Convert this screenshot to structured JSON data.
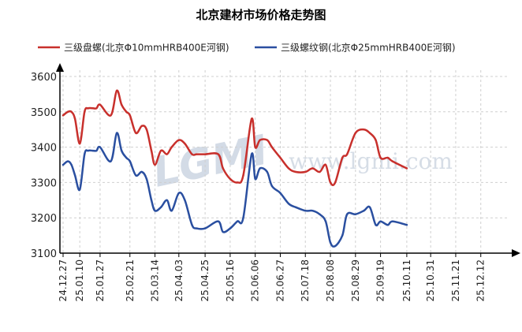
{
  "chart_data": {
    "type": "line",
    "title": "北京建材市场价格走势图",
    "xlabel": "",
    "ylabel": "",
    "ylim": [
      3100,
      3600
    ],
    "yticks": [
      3100,
      3200,
      3300,
      3400,
      3500,
      3600
    ],
    "xlim": [
      "24.12.27",
      "26.01.01"
    ],
    "xticks": [
      "24.12.27",
      "25.01.10",
      "25.01.27",
      "25.02.21",
      "25.03.14",
      "25.04.03",
      "25.04.25",
      "25.05.16",
      "25.06.06",
      "25.06.27",
      "25.07.18",
      "25.08.08",
      "25.08.29",
      "25.09.19",
      "25.10.11",
      "25.10.31",
      "25.11.21",
      "25.12.12"
    ],
    "grid": true,
    "legend_position": "top",
    "watermark": {
      "logo": "LGMI",
      "url": "www.lgmi.com"
    },
    "series": [
      {
        "name": "三级盘螺(北京Φ10mmHRB400E河钢)",
        "color": "#c8302c",
        "points": [
          [
            "24.12.27",
            3490
          ],
          [
            "24.12.31",
            3500
          ],
          [
            "25.01.03",
            3500
          ],
          [
            "25.01.06",
            3480
          ],
          [
            "25.01.10",
            3410
          ],
          [
            "25.01.14",
            3500
          ],
          [
            "25.01.17",
            3510
          ],
          [
            "25.01.21",
            3510
          ],
          [
            "25.01.24",
            3510
          ],
          [
            "25.01.27",
            3520
          ],
          [
            "25.02.05",
            3490
          ],
          [
            "25.02.10",
            3560
          ],
          [
            "25.02.14",
            3520
          ],
          [
            "25.02.18",
            3500
          ],
          [
            "25.02.21",
            3490
          ],
          [
            "25.02.26",
            3440
          ],
          [
            "25.03.03",
            3460
          ],
          [
            "25.03.07",
            3450
          ],
          [
            "25.03.11",
            3390
          ],
          [
            "25.03.14",
            3350
          ],
          [
            "25.03.19",
            3390
          ],
          [
            "25.03.24",
            3380
          ],
          [
            "25.03.28",
            3400
          ],
          [
            "25.04.03",
            3420
          ],
          [
            "25.04.08",
            3410
          ],
          [
            "25.04.14",
            3380
          ],
          [
            "25.04.18",
            3380
          ],
          [
            "25.04.25",
            3380
          ],
          [
            "25.05.06",
            3380
          ],
          [
            "25.05.10",
            3340
          ],
          [
            "25.05.16",
            3310
          ],
          [
            "25.05.22",
            3300
          ],
          [
            "25.05.27",
            3320
          ],
          [
            "25.06.03",
            3480
          ],
          [
            "25.06.06",
            3400
          ],
          [
            "25.06.10",
            3420
          ],
          [
            "25.06.16",
            3420
          ],
          [
            "25.06.20",
            3400
          ],
          [
            "25.06.27",
            3370
          ],
          [
            "25.07.04",
            3340
          ],
          [
            "25.07.10",
            3330
          ],
          [
            "25.07.18",
            3330
          ],
          [
            "25.07.24",
            3340
          ],
          [
            "25.07.30",
            3330
          ],
          [
            "25.08.04",
            3350
          ],
          [
            "25.08.08",
            3300
          ],
          [
            "25.08.12",
            3300
          ],
          [
            "25.08.18",
            3370
          ],
          [
            "25.08.22",
            3380
          ],
          [
            "25.08.29",
            3440
          ],
          [
            "25.09.05",
            3450
          ],
          [
            "25.09.10",
            3440
          ],
          [
            "25.09.15",
            3420
          ],
          [
            "25.09.19",
            3370
          ],
          [
            "25.09.25",
            3370
          ],
          [
            "25.09.29",
            3360
          ],
          [
            "25.10.11",
            3340
          ]
        ]
      },
      {
        "name": "三级螺纹钢(北京Φ25mmHRB400E河钢)",
        "color": "#2a4fa0",
        "points": [
          [
            "24.12.27",
            3350
          ],
          [
            "24.12.31",
            3360
          ],
          [
            "25.01.03",
            3350
          ],
          [
            "25.01.06",
            3320
          ],
          [
            "25.01.10",
            3280
          ],
          [
            "25.01.14",
            3380
          ],
          [
            "25.01.17",
            3390
          ],
          [
            "25.01.21",
            3390
          ],
          [
            "25.01.24",
            3390
          ],
          [
            "25.01.27",
            3400
          ],
          [
            "25.02.05",
            3360
          ],
          [
            "25.02.10",
            3440
          ],
          [
            "25.02.14",
            3390
          ],
          [
            "25.02.18",
            3370
          ],
          [
            "25.02.21",
            3360
          ],
          [
            "25.02.26",
            3320
          ],
          [
            "25.03.03",
            3330
          ],
          [
            "25.03.07",
            3310
          ],
          [
            "25.03.11",
            3250
          ],
          [
            "25.03.14",
            3220
          ],
          [
            "25.03.19",
            3230
          ],
          [
            "25.03.24",
            3250
          ],
          [
            "25.03.28",
            3220
          ],
          [
            "25.04.03",
            3270
          ],
          [
            "25.04.08",
            3250
          ],
          [
            "25.04.14",
            3180
          ],
          [
            "25.04.18",
            3170
          ],
          [
            "25.04.25",
            3170
          ],
          [
            "25.05.06",
            3190
          ],
          [
            "25.05.10",
            3160
          ],
          [
            "25.05.16",
            3170
          ],
          [
            "25.05.22",
            3190
          ],
          [
            "25.05.27",
            3200
          ],
          [
            "25.06.03",
            3380
          ],
          [
            "25.06.06",
            3310
          ],
          [
            "25.06.10",
            3340
          ],
          [
            "25.06.16",
            3330
          ],
          [
            "25.06.20",
            3290
          ],
          [
            "25.06.27",
            3270
          ],
          [
            "25.07.04",
            3240
          ],
          [
            "25.07.10",
            3230
          ],
          [
            "25.07.18",
            3220
          ],
          [
            "25.07.24",
            3220
          ],
          [
            "25.07.30",
            3210
          ],
          [
            "25.08.04",
            3190
          ],
          [
            "25.08.08",
            3130
          ],
          [
            "25.08.12",
            3120
          ],
          [
            "25.08.18",
            3150
          ],
          [
            "25.08.22",
            3210
          ],
          [
            "25.08.29",
            3210
          ],
          [
            "25.09.05",
            3220
          ],
          [
            "25.09.10",
            3230
          ],
          [
            "25.09.15",
            3180
          ],
          [
            "25.09.19",
            3190
          ],
          [
            "25.09.25",
            3180
          ],
          [
            "25.09.29",
            3190
          ],
          [
            "25.10.11",
            3180
          ]
        ]
      }
    ]
  }
}
